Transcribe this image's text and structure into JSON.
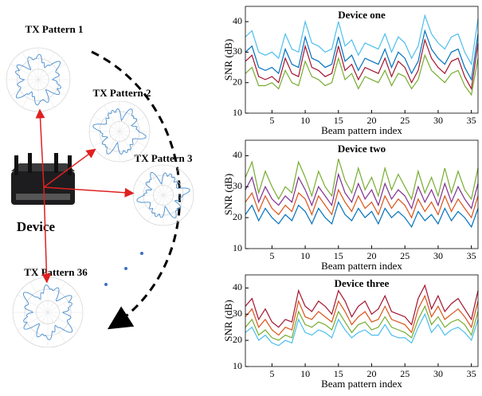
{
  "diagram": {
    "patterns": [
      "TX Pattern 1",
      "TX Pattern 2",
      "TX Pattern 3",
      "TX Pattern 36"
    ],
    "device_label": "Device"
  },
  "chart_data": [
    {
      "type": "line",
      "title": "Device one",
      "xlabel": "Beam pattern index",
      "ylabel": "SNR (dB)",
      "x": [
        1,
        2,
        3,
        4,
        5,
        6,
        7,
        8,
        9,
        10,
        11,
        12,
        13,
        14,
        15,
        16,
        17,
        18,
        19,
        20,
        21,
        22,
        23,
        24,
        25,
        26,
        27,
        28,
        29,
        30,
        31,
        32,
        33,
        34,
        35,
        36
      ],
      "xlim": [
        1,
        36
      ],
      "xticks": [
        5,
        10,
        15,
        20,
        25,
        30,
        35
      ],
      "ylim": [
        10,
        45
      ],
      "yticks": [
        10,
        20,
        30,
        40
      ],
      "series": [
        {
          "color": "#4dbeee",
          "values": [
            35,
            37,
            30,
            29,
            30,
            28,
            36,
            31,
            30,
            40,
            33,
            32,
            30,
            31,
            40,
            32,
            34,
            29,
            33,
            32,
            31,
            36,
            30,
            35,
            33,
            28,
            32,
            42,
            36,
            33,
            31,
            35,
            36,
            30,
            26,
            41
          ]
        },
        {
          "color": "#0072bd",
          "values": [
            30,
            32,
            25,
            24,
            25,
            23,
            31,
            26,
            25,
            35,
            28,
            27,
            25,
            26,
            35,
            27,
            29,
            24,
            28,
            27,
            26,
            31,
            25,
            30,
            28,
            23,
            27,
            37,
            31,
            28,
            26,
            30,
            31,
            25,
            21,
            36
          ]
        },
        {
          "color": "#a2142f",
          "values": [
            27,
            29,
            22,
            21,
            22,
            20,
            28,
            23,
            22,
            32,
            25,
            24,
            22,
            23,
            32,
            24,
            26,
            21,
            25,
            24,
            23,
            28,
            22,
            27,
            25,
            20,
            24,
            34,
            28,
            25,
            23,
            27,
            28,
            22,
            18,
            33
          ]
        },
        {
          "color": "#77ac30",
          "values": [
            23,
            25,
            19,
            19,
            20,
            18,
            24,
            20,
            19,
            27,
            22,
            21,
            19,
            20,
            28,
            21,
            23,
            18,
            22,
            21,
            20,
            24,
            19,
            23,
            22,
            18,
            21,
            29,
            24,
            22,
            20,
            23,
            24,
            19,
            16,
            28
          ]
        }
      ]
    },
    {
      "type": "line",
      "title": "Device two",
      "xlabel": "Beam pattern index",
      "ylabel": "SNR (dB)",
      "x": [
        1,
        2,
        3,
        4,
        5,
        6,
        7,
        8,
        9,
        10,
        11,
        12,
        13,
        14,
        15,
        16,
        17,
        18,
        19,
        20,
        21,
        22,
        23,
        24,
        25,
        26,
        27,
        28,
        29,
        30,
        31,
        32,
        33,
        34,
        35,
        36
      ],
      "xlim": [
        1,
        36
      ],
      "xticks": [
        5,
        10,
        15,
        20,
        25,
        30,
        35
      ],
      "ylim": [
        10,
        45
      ],
      "yticks": [
        10,
        20,
        30,
        40
      ],
      "series": [
        {
          "color": "#77ac30",
          "values": [
            33,
            38,
            28,
            35,
            30,
            26,
            30,
            28,
            38,
            33,
            27,
            35,
            30,
            27,
            39,
            32,
            28,
            36,
            29,
            33,
            27,
            36,
            29,
            34,
            30,
            26,
            35,
            28,
            33,
            27,
            36,
            28,
            35,
            29,
            26,
            36
          ]
        },
        {
          "color": "#7e2f8e",
          "values": [
            29,
            33,
            25,
            30,
            26,
            24,
            27,
            25,
            33,
            29,
            24,
            30,
            27,
            24,
            34,
            28,
            25,
            31,
            26,
            29,
            24,
            31,
            26,
            29,
            27,
            23,
            30,
            25,
            29,
            24,
            31,
            25,
            30,
            26,
            23,
            31
          ]
        },
        {
          "color": "#d95319",
          "values": [
            25,
            28,
            22,
            27,
            23,
            21,
            24,
            22,
            28,
            26,
            21,
            27,
            24,
            21,
            29,
            25,
            22,
            27,
            23,
            25,
            21,
            27,
            23,
            26,
            24,
            20,
            26,
            22,
            25,
            21,
            27,
            22,
            26,
            23,
            20,
            27
          ]
        },
        {
          "color": "#0072bd",
          "values": [
            21,
            24,
            19,
            23,
            20,
            18,
            21,
            19,
            24,
            22,
            18,
            23,
            20,
            18,
            25,
            21,
            19,
            23,
            20,
            22,
            18,
            23,
            20,
            22,
            20,
            17,
            22,
            19,
            21,
            18,
            23,
            19,
            22,
            20,
            17,
            23
          ]
        }
      ]
    },
    {
      "type": "line",
      "title": "Device three",
      "xlabel": "Beam pattern index",
      "ylabel": "SNR (dB)",
      "x": [
        1,
        2,
        3,
        4,
        5,
        6,
        7,
        8,
        9,
        10,
        11,
        12,
        13,
        14,
        15,
        16,
        17,
        18,
        19,
        20,
        21,
        22,
        23,
        24,
        25,
        26,
        27,
        28,
        29,
        30,
        31,
        32,
        33,
        34,
        35,
        36
      ],
      "xlim": [
        1,
        36
      ],
      "xticks": [
        5,
        10,
        15,
        20,
        25,
        30,
        35
      ],
      "ylim": [
        10,
        45
      ],
      "yticks": [
        10,
        20,
        30,
        40
      ],
      "series": [
        {
          "color": "#a2142f",
          "values": [
            33,
            36,
            28,
            32,
            27,
            25,
            28,
            27,
            39,
            33,
            31,
            35,
            33,
            30,
            39,
            35,
            29,
            33,
            35,
            30,
            32,
            37,
            31,
            30,
            29,
            26,
            36,
            41,
            32,
            37,
            31,
            34,
            36,
            32,
            28,
            39
          ]
        },
        {
          "color": "#d95319",
          "values": [
            29,
            32,
            25,
            28,
            24,
            22,
            25,
            24,
            35,
            29,
            28,
            31,
            29,
            27,
            35,
            31,
            26,
            29,
            31,
            27,
            28,
            33,
            28,
            27,
            26,
            23,
            32,
            37,
            29,
            33,
            28,
            30,
            32,
            29,
            25,
            35
          ]
        },
        {
          "color": "#77ac30",
          "values": [
            25,
            28,
            22,
            24,
            21,
            20,
            22,
            21,
            31,
            26,
            25,
            27,
            26,
            24,
            31,
            27,
            23,
            26,
            27,
            24,
            25,
            29,
            25,
            24,
            23,
            21,
            28,
            33,
            26,
            29,
            25,
            27,
            28,
            26,
            22,
            31
          ]
        },
        {
          "color": "#4dbeee",
          "values": [
            23,
            25,
            20,
            22,
            19,
            18,
            20,
            19,
            28,
            23,
            22,
            24,
            23,
            21,
            28,
            24,
            21,
            23,
            24,
            22,
            22,
            26,
            22,
            21,
            21,
            19,
            25,
            30,
            23,
            26,
            22,
            24,
            25,
            23,
            20,
            28
          ]
        }
      ]
    }
  ]
}
